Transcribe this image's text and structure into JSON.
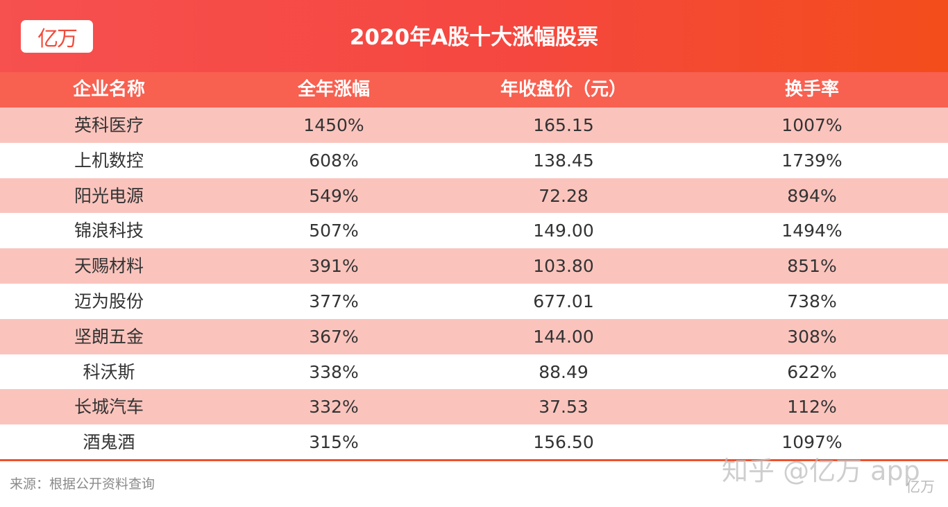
{
  "header": {
    "logo_text": "亿万",
    "title": "2020年A股十大涨幅股票"
  },
  "table": {
    "columns": [
      "企业名称",
      "全年涨幅",
      "年收盘价（元）",
      "换手率"
    ],
    "rows": [
      [
        "英科医疗",
        "1450%",
        "165.15",
        "1007%"
      ],
      [
        "上机数控",
        "608%",
        "138.45",
        "1739%"
      ],
      [
        "阳光电源",
        "549%",
        "72.28",
        "894%"
      ],
      [
        "锦浪科技",
        "507%",
        "149.00",
        "1494%"
      ],
      [
        "天赐材料",
        "391%",
        "103.80",
        "851%"
      ],
      [
        "迈为股份",
        "377%",
        "677.01",
        "738%"
      ],
      [
        "坚朗五金",
        "367%",
        "144.00",
        "308%"
      ],
      [
        "科沃斯",
        "338%",
        "88.49",
        "622%"
      ],
      [
        "长城汽车",
        "332%",
        "37.53",
        "112%"
      ],
      [
        "酒鬼酒",
        "315%",
        "156.50",
        "1097%"
      ]
    ]
  },
  "footer": {
    "source": "来源：根据公开资料查询"
  },
  "watermark": {
    "main": "知乎 @亿万 app",
    "corner": "亿万"
  },
  "colors": {
    "header_gradient_start": "#f6504f",
    "header_gradient_end": "#f34d1b",
    "table_header": "#f86050",
    "odd_row": "#fac4bd",
    "even_row": "#ffffff",
    "divider": "#f0512e"
  }
}
